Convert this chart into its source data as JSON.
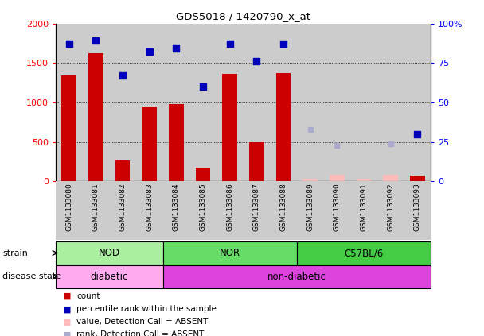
{
  "title": "GDS5018 / 1420790_x_at",
  "samples": [
    "GSM1133080",
    "GSM1133081",
    "GSM1133082",
    "GSM1133083",
    "GSM1133084",
    "GSM1133085",
    "GSM1133086",
    "GSM1133087",
    "GSM1133088",
    "GSM1133089",
    "GSM1133090",
    "GSM1133091",
    "GSM1133092",
    "GSM1133093"
  ],
  "counts": [
    1340,
    1620,
    270,
    940,
    980,
    180,
    1360,
    500,
    1370,
    30,
    80,
    30,
    80,
    70
  ],
  "percentile_ranks": [
    87,
    89,
    67,
    82,
    84,
    60,
    87,
    76,
    87,
    null,
    null,
    null,
    null,
    30
  ],
  "absent_counts": [
    null,
    null,
    null,
    null,
    null,
    null,
    null,
    null,
    null,
    30,
    80,
    30,
    80,
    null
  ],
  "absent_ranks": [
    null,
    null,
    null,
    null,
    null,
    null,
    null,
    null,
    null,
    33,
    23,
    null,
    24,
    null
  ],
  "detection_absent": [
    false,
    false,
    false,
    false,
    false,
    false,
    false,
    false,
    false,
    true,
    true,
    true,
    true,
    false
  ],
  "ylim_left": [
    0,
    2000
  ],
  "ylim_right": [
    0,
    100
  ],
  "yticks_left": [
    0,
    500,
    1000,
    1500,
    2000
  ],
  "yticks_right": [
    0,
    25,
    50,
    75,
    100
  ],
  "strain_groups": [
    {
      "label": "NOD",
      "start": 0,
      "end": 3,
      "color": "#AAEEA0"
    },
    {
      "label": "NOR",
      "start": 4,
      "end": 8,
      "color": "#66DD66"
    },
    {
      "label": "C57BL/6",
      "start": 9,
      "end": 13,
      "color": "#44CC44"
    }
  ],
  "disease_groups": [
    {
      "label": "diabetic",
      "start": 0,
      "end": 3,
      "color": "#FFAAEE"
    },
    {
      "label": "non-diabetic",
      "start": 4,
      "end": 13,
      "color": "#DD44DD"
    }
  ],
  "bar_color": "#CC0000",
  "dot_color": "#0000BB",
  "absent_bar_color": "#FFBBBB",
  "absent_dot_color": "#AAAACC",
  "bg_color": "#CCCCCC",
  "plot_bg": "#CCCCCC"
}
